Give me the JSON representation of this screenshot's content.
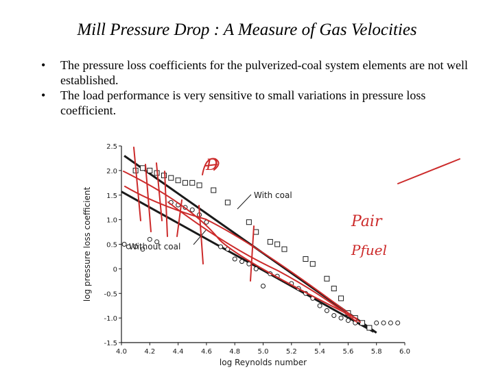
{
  "slide": {
    "title": "Mill Pressure Drop : A Measure of Gas Velocities",
    "bullets": [
      "The pressure loss coefficients for the pulverized-coal system elements are not well established.",
      "The load performance is very sensitive to small variations in pressure loss coefficient."
    ]
  },
  "chart_data": {
    "type": "scatter",
    "title": "",
    "xlabel": "log Reynolds number",
    "ylabel": "log pressure loss coefficient",
    "xlim": [
      4.0,
      6.0
    ],
    "ylim": [
      -1.5,
      2.5
    ],
    "xticks": [
      "4.0",
      "4.2",
      "4.4",
      "4.6",
      "4.8",
      "5.0",
      "5.2",
      "5.4",
      "5.6",
      "5.8",
      "6.0"
    ],
    "yticks": [
      "2.5",
      "2.0",
      "1.5",
      "1.0",
      "0.5",
      "0",
      "-0.5",
      "-1.0",
      "-1.5"
    ],
    "grid": false,
    "annotations": [
      "With coal",
      "Without coal"
    ],
    "handwritten_notes": [
      "D",
      "Pair",
      "Pfuel"
    ],
    "series": [
      {
        "name": "With coal",
        "marker": "square",
        "points": [
          [
            4.1,
            2.0
          ],
          [
            4.15,
            2.05
          ],
          [
            4.2,
            2.0
          ],
          [
            4.25,
            1.95
          ],
          [
            4.3,
            1.9
          ],
          [
            4.35,
            1.85
          ],
          [
            4.4,
            1.8
          ],
          [
            4.45,
            1.75
          ],
          [
            4.5,
            1.75
          ],
          [
            4.55,
            1.7
          ],
          [
            4.65,
            1.6
          ],
          [
            4.75,
            1.35
          ],
          [
            4.9,
            0.95
          ],
          [
            4.95,
            0.75
          ],
          [
            5.05,
            0.55
          ],
          [
            5.1,
            0.5
          ],
          [
            5.15,
            0.4
          ],
          [
            5.3,
            0.2
          ],
          [
            5.35,
            0.1
          ],
          [
            5.45,
            -0.2
          ],
          [
            5.5,
            -0.4
          ],
          [
            5.55,
            -0.6
          ],
          [
            5.6,
            -0.9
          ],
          [
            5.65,
            -1.0
          ],
          [
            5.7,
            -1.1
          ],
          [
            5.75,
            -1.2
          ]
        ]
      },
      {
        "name": "Without coal",
        "marker": "circle",
        "points": [
          [
            4.02,
            0.5
          ],
          [
            4.05,
            0.45
          ],
          [
            4.1,
            0.45
          ],
          [
            4.15,
            0.4
          ],
          [
            4.2,
            0.6
          ],
          [
            4.25,
            0.55
          ],
          [
            4.35,
            1.35
          ],
          [
            4.4,
            1.3
          ],
          [
            4.45,
            1.25
          ],
          [
            4.5,
            1.2
          ],
          [
            4.55,
            1.1
          ],
          [
            4.6,
            0.95
          ],
          [
            4.7,
            0.45
          ],
          [
            4.75,
            0.4
          ],
          [
            4.8,
            0.2
          ],
          [
            4.85,
            0.15
          ],
          [
            4.9,
            0.1
          ],
          [
            4.95,
            0.0
          ],
          [
            5.0,
            -0.35
          ],
          [
            5.05,
            -0.1
          ],
          [
            5.1,
            -0.15
          ],
          [
            5.2,
            -0.3
          ],
          [
            5.25,
            -0.4
          ],
          [
            5.3,
            -0.5
          ],
          [
            5.35,
            -0.6
          ],
          [
            5.4,
            -0.75
          ],
          [
            5.45,
            -0.85
          ],
          [
            5.5,
            -0.95
          ],
          [
            5.55,
            -1.0
          ],
          [
            5.6,
            -1.05
          ],
          [
            5.65,
            -1.1
          ],
          [
            5.8,
            -1.1
          ],
          [
            5.85,
            -1.1
          ],
          [
            5.9,
            -1.1
          ],
          [
            5.95,
            -1.1
          ]
        ]
      }
    ],
    "fit_lines": [
      {
        "name": "With coal",
        "from": [
          4.02,
          2.3
        ],
        "to": [
          5.8,
          -1.3
        ]
      },
      {
        "name": "Without coal",
        "from": [
          4.0,
          1.57
        ],
        "to": [
          5.78,
          -1.28
        ]
      }
    ]
  },
  "colors": {
    "text": "#000000",
    "chart_ink": "#1a1a1a",
    "annotation_red": "#cc2a2a"
  }
}
